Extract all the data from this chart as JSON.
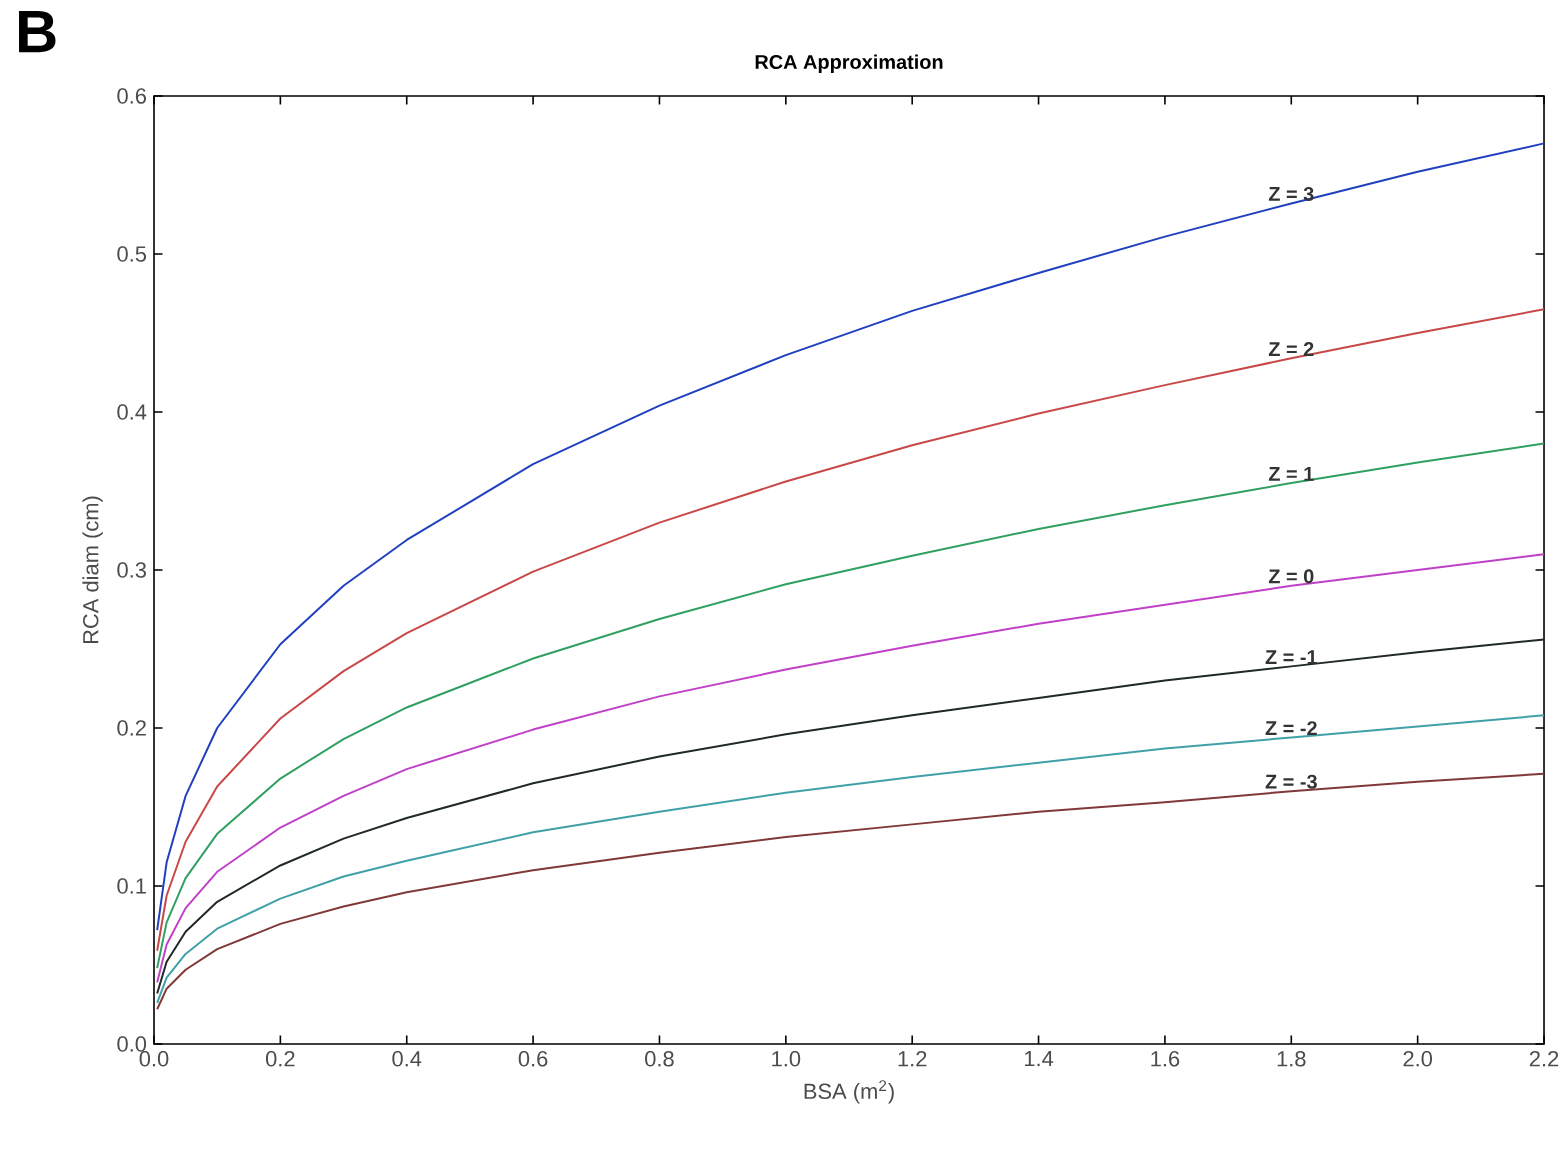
{
  "chart_data": {
    "type": "line",
    "title": "RCA Approximation",
    "xlabel": "BSA (m$^{2}$)",
    "ylabel": "RCA diam (cm)",
    "annotations": [
      "B"
    ],
    "x": [
      0.005,
      0.02,
      0.05,
      0.1,
      0.2,
      0.3,
      0.4,
      0.6,
      0.8,
      1.0,
      1.2,
      1.4,
      1.6,
      1.8,
      2.0,
      2.2
    ],
    "series": [
      {
        "name": "Z = 3",
        "color": "#2040c0",
        "values": [
          0.072,
          0.115,
          0.157,
          0.2,
          0.253,
          0.29,
          0.319,
          0.367,
          0.404,
          0.436,
          0.464,
          0.488,
          0.511,
          0.532,
          0.552,
          0.57
        ]
      },
      {
        "name": "Z = 2",
        "color": "#c84848",
        "values": [
          0.059,
          0.094,
          0.128,
          0.163,
          0.206,
          0.236,
          0.26,
          0.299,
          0.33,
          0.356,
          0.379,
          0.399,
          0.417,
          0.434,
          0.45,
          0.465
        ]
      },
      {
        "name": "Z = 1",
        "color": "#30a060",
        "values": [
          0.048,
          0.077,
          0.105,
          0.133,
          0.168,
          0.193,
          0.213,
          0.244,
          0.269,
          0.291,
          0.309,
          0.326,
          0.341,
          0.355,
          0.368,
          0.38
        ]
      },
      {
        "name": "Z = 0",
        "color": "#c040c8",
        "values": [
          0.039,
          0.063,
          0.086,
          0.109,
          0.137,
          0.157,
          0.174,
          0.199,
          0.22,
          0.237,
          0.252,
          0.266,
          0.278,
          0.29,
          0.3,
          0.31
        ]
      },
      {
        "name": "Z = -1",
        "color": "#202828",
        "values": [
          0.032,
          0.052,
          0.071,
          0.09,
          0.113,
          0.13,
          0.143,
          0.165,
          0.182,
          0.196,
          0.208,
          0.219,
          0.23,
          0.239,
          0.248,
          0.256
        ]
      },
      {
        "name": "Z = -2",
        "color": "#40a0a8",
        "values": [
          0.026,
          0.042,
          0.057,
          0.073,
          0.092,
          0.106,
          0.116,
          0.134,
          0.147,
          0.159,
          0.169,
          0.178,
          0.187,
          0.194,
          0.201,
          0.208
        ]
      },
      {
        "name": "Z = -3",
        "color": "#803838",
        "values": [
          0.022,
          0.035,
          0.047,
          0.06,
          0.076,
          0.087,
          0.096,
          0.11,
          0.121,
          0.131,
          0.139,
          0.147,
          0.153,
          0.16,
          0.166,
          0.171
        ]
      }
    ],
    "xlim": [
      0,
      2.2
    ],
    "ylim": [
      0,
      0.6
    ],
    "xticks": [
      {
        "value": 0,
        "label": "0.0"
      },
      0.2,
      0.4,
      0.6,
      0.8,
      {
        "value": 1,
        "label": "1.0"
      },
      1.2,
      1.4,
      1.6,
      1.8,
      {
        "value": 2,
        "label": "2.0"
      },
      2.2
    ],
    "yticks": [
      {
        "value": 0,
        "label": "0.0"
      },
      0.1,
      0.2,
      0.3,
      0.4,
      0.5,
      0.6
    ],
    "grid": false,
    "legend": false,
    "marker": "none",
    "line_style": "solid"
  }
}
